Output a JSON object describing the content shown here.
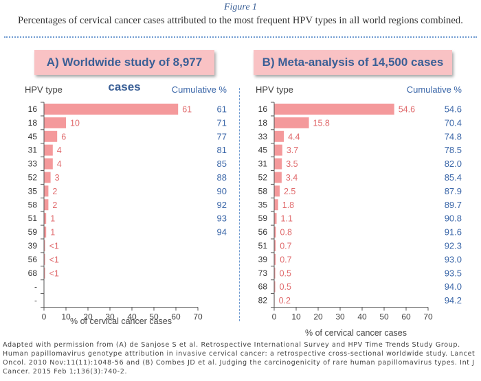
{
  "figure_label": "Figure 1",
  "caption": "Percentages of cervical cancer cases attributed to the most frequent HPV types in all world regions combined.",
  "footnote": "Adapted with permission from (A) de Sanjose S et al. Retrospective International Survey and HPV Time Trends Study Group. Human papillomavirus genotype attribution in invasive cervical cancer: a retrospective cross-sectional worldwide study. Lancet Oncol. 2010 Nov;11(11):1048-56 and (B) Combes JD et al. Judging the carcinogenicity of rare human papillomavirus types. Int J Cancer. 2015 Feb 1;136(3):740-2.",
  "colors": {
    "bar": "#f4999b",
    "value_label": "#e06a6c",
    "cumulative": "#3a66a8",
    "title_bg": "#f9c2c4"
  },
  "chart_data": [
    {
      "type": "bar",
      "orientation": "horizontal",
      "title": "A) Worldwide study of 8,977 cases",
      "category_header": "HPV type",
      "cumulative_header": "Cumulative %",
      "categories": [
        "16",
        "18",
        "45",
        "31",
        "33",
        "52",
        "35",
        "58",
        "51",
        "59",
        "39",
        "56",
        "68",
        "-",
        "-"
      ],
      "values": [
        61,
        10,
        6,
        4,
        4,
        3,
        2,
        2,
        1,
        1,
        0.5,
        0.5,
        0.5,
        null,
        null
      ],
      "value_labels": [
        "61",
        "10",
        "6",
        "4",
        "4",
        "3",
        "2",
        "2",
        "1",
        "1",
        "<1",
        "<1",
        "<1",
        "",
        ""
      ],
      "cumulative": [
        "61",
        "71",
        "77",
        "81",
        "85",
        "88",
        "90",
        "92",
        "93",
        "94",
        "",
        "",
        "",
        "",
        ""
      ],
      "xlabel": "% of cervical cancer cases",
      "xlim": [
        0,
        70
      ],
      "xticks": [
        0,
        10,
        20,
        30,
        40,
        50,
        60,
        70
      ]
    },
    {
      "type": "bar",
      "orientation": "horizontal",
      "title": "B) Meta-analysis of 14,500 cases",
      "category_header": "HPV type",
      "cumulative_header": "Cumulative %",
      "categories": [
        "16",
        "18",
        "33",
        "45",
        "31",
        "52",
        "58",
        "35",
        "59",
        "56",
        "51",
        "39",
        "73",
        "68",
        "82"
      ],
      "values": [
        54.6,
        15.8,
        4.4,
        3.7,
        3.5,
        3.4,
        2.5,
        1.8,
        1.1,
        0.8,
        0.7,
        0.7,
        0.5,
        0.5,
        0.2
      ],
      "value_labels": [
        "54.6",
        "15.8",
        "4.4",
        "3.7",
        "3.5",
        "3.4",
        "2.5",
        "1.8",
        "1.1",
        "0.8",
        "0.7",
        "0.7",
        "0.5",
        "0.5",
        "0.2"
      ],
      "cumulative": [
        "54.6",
        "70.4",
        "74.8",
        "78.5",
        "82.0",
        "85.4",
        "87.9",
        "89.7",
        "90.8",
        "91.6",
        "92.3",
        "93.0",
        "93.5",
        "94.0",
        "94.2"
      ],
      "xlabel": "% of cervical cancer cases",
      "xlim": [
        0,
        70
      ],
      "xticks": [
        0,
        10,
        20,
        30,
        40,
        50,
        60,
        70
      ]
    }
  ]
}
